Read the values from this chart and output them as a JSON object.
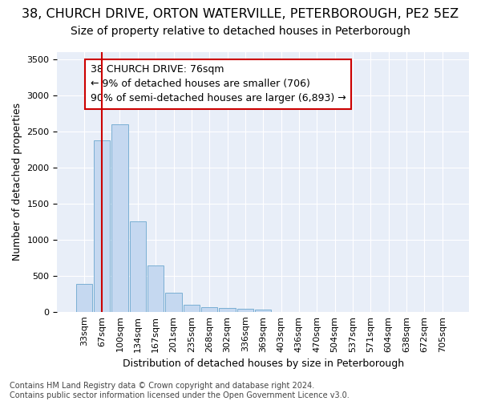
{
  "title_line1": "38, CHURCH DRIVE, ORTON WATERVILLE, PETERBOROUGH, PE2 5EZ",
  "title_line2": "Size of property relative to detached houses in Peterborough",
  "xlabel": "Distribution of detached houses by size in Peterborough",
  "ylabel": "Number of detached properties",
  "footnote": "Contains HM Land Registry data © Crown copyright and database right 2024.\nContains public sector information licensed under the Open Government Licence v3.0.",
  "categories": [
    "33sqm",
    "67sqm",
    "100sqm",
    "134sqm",
    "167sqm",
    "201sqm",
    "235sqm",
    "268sqm",
    "302sqm",
    "336sqm",
    "369sqm",
    "403sqm",
    "436sqm",
    "470sqm",
    "504sqm",
    "537sqm",
    "571sqm",
    "604sqm",
    "638sqm",
    "672sqm",
    "705sqm"
  ],
  "bar_values": [
    390,
    2380,
    2600,
    1250,
    640,
    260,
    95,
    60,
    55,
    40,
    30,
    0,
    0,
    0,
    0,
    0,
    0,
    0,
    0,
    0,
    0
  ],
  "bar_color": "#c5d8f0",
  "bar_edgecolor": "#7aafd4",
  "figure_bg": "#ffffff",
  "axes_bg": "#e8eef8",
  "grid_color": "#ffffff",
  "annotation_text": "38 CHURCH DRIVE: 76sqm\n← 9% of detached houses are smaller (706)\n90% of semi-detached houses are larger (6,893) →",
  "annotation_box_color": "#ffffff",
  "annotation_border_color": "#cc0000",
  "redline_x": 1.0,
  "ylim": [
    0,
    3600
  ],
  "yticks": [
    0,
    500,
    1000,
    1500,
    2000,
    2500,
    3000,
    3500
  ],
  "title1_fontsize": 11.5,
  "title2_fontsize": 10,
  "axis_label_fontsize": 9,
  "tick_fontsize": 8,
  "annot_fontsize": 9,
  "footnote_fontsize": 7
}
